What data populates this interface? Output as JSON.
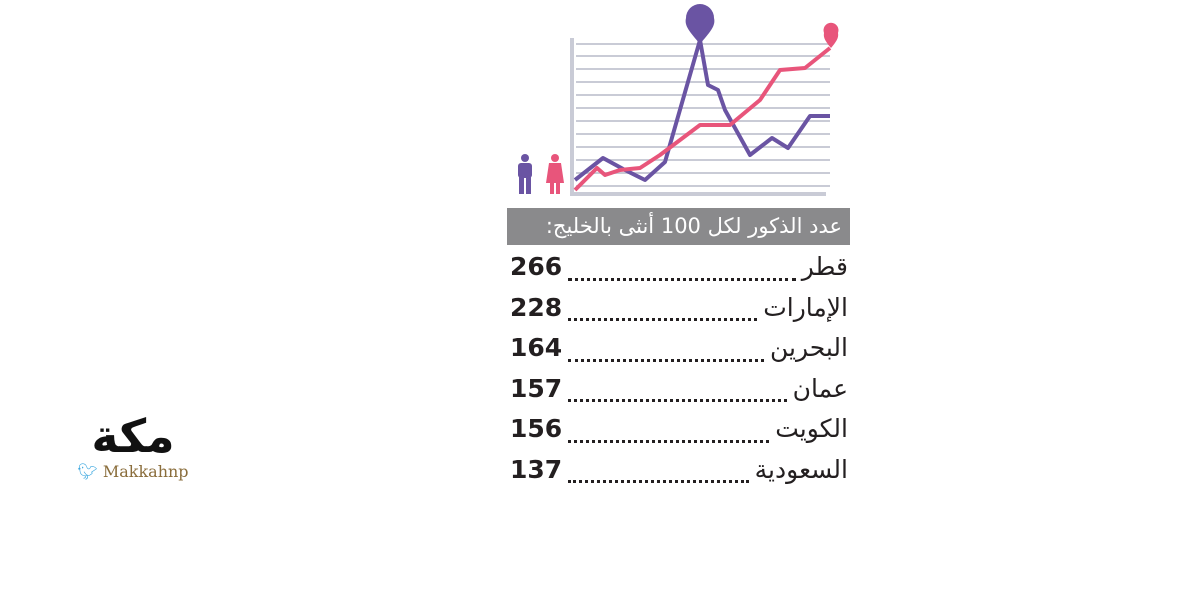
{
  "header": {
    "title": "عدد الذكور لكل 100 أنثى بالخليج:"
  },
  "table": {
    "rows": [
      [
        "قطر",
        "266"
      ],
      [
        "الإمارات",
        "228"
      ],
      [
        "البحرين",
        "164"
      ],
      [
        "عمان",
        "157"
      ],
      [
        "الكويت",
        "156"
      ],
      [
        "السعودية",
        "137"
      ]
    ]
  },
  "logo": {
    "name": "مكة",
    "handle": "Makkahnp"
  }
}
